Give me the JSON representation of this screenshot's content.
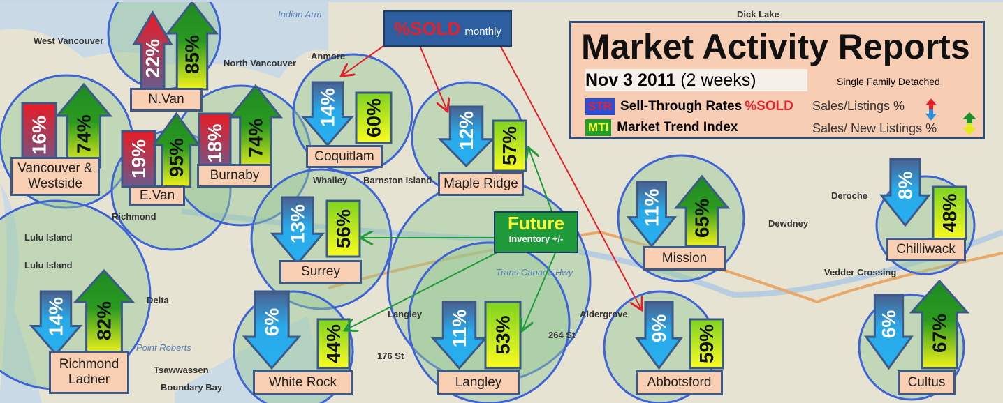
{
  "legend": {
    "title": "Market  Activity Reports",
    "date": "Nov 3 2011",
    "period": "(2 weeks)",
    "property_type": "Single Family Detached",
    "str_tag": "STR",
    "str_label": "Sell-Through Rates",
    "str_sold": "%SOLD",
    "str_ratio": "Sales/Listings %",
    "mti_tag": "MTI",
    "mti_label": "Market Trend Index",
    "mti_ratio": "Sales/ New Listings %"
  },
  "callouts": {
    "sold_main": "%SOLD",
    "sold_sub": "monthly",
    "future_main": "Future",
    "future_sub": "Inventory +/-"
  },
  "colors": {
    "str_up": "#e3212b",
    "str_down": "#29a9e8",
    "mti_up": "#1f8f2a",
    "mti_box": "#e5f21a",
    "circle": "#3d63d6",
    "label_bg": "#f8cfb2"
  },
  "map_labels": [
    "West Vancouver",
    "Indian Arm",
    "North Vancouver",
    "Richmond",
    "Lulu Island",
    "Lulu Island",
    "Delta",
    "Tsawwassen",
    "Boundary Bay",
    "Point Roberts",
    "Whalley",
    "Langley",
    "Aldergrove",
    "Trans Canada Hwy",
    "Deroche",
    "Dewdney",
    "Vedder Crossing",
    "Dick Lake",
    "Anmore",
    "Barnston Island",
    "176 St",
    "264 St"
  ],
  "regions": [
    {
      "name": "N.Van",
      "str": "22%",
      "str_dir": "up",
      "mti": "85%",
      "mti_dir": "up"
    },
    {
      "name": "Vancouver & Westside",
      "str": "16%",
      "str_dir": "up",
      "mti": "74%",
      "mti_dir": "up"
    },
    {
      "name": "E.Van",
      "str": "19%",
      "str_dir": "up",
      "mti": "95%",
      "mti_dir": "up"
    },
    {
      "name": "Burnaby",
      "str": "18%",
      "str_dir": "up",
      "mti": "74%",
      "mti_dir": "up"
    },
    {
      "name": "Coquitlam",
      "str": "14%",
      "str_dir": "down",
      "mti": "60%",
      "mti_dir": "flat"
    },
    {
      "name": "Maple Ridge",
      "str": "12%",
      "str_dir": "down",
      "mti": "57%",
      "mti_dir": "flat"
    },
    {
      "name": "Surrey",
      "str": "13%",
      "str_dir": "down",
      "mti": "56%",
      "mti_dir": "flat"
    },
    {
      "name": "Mission",
      "str": "11%",
      "str_dir": "down",
      "mti": "65%",
      "mti_dir": "up"
    },
    {
      "name": "Chilliwack",
      "str": "8%",
      "str_dir": "down",
      "mti": "48%",
      "mti_dir": "flat"
    },
    {
      "name": "Richmond Ladner",
      "str": "14%",
      "str_dir": "down",
      "mti": "82%",
      "mti_dir": "up"
    },
    {
      "name": "White Rock",
      "str": "6%",
      "str_dir": "down",
      "mti": "44%",
      "mti_dir": "flat"
    },
    {
      "name": "Langley",
      "str": "11%",
      "str_dir": "down",
      "mti": "53%",
      "mti_dir": "flat"
    },
    {
      "name": "Abbotsford",
      "str": "9%",
      "str_dir": "down",
      "mti": "59%",
      "mti_dir": "flat"
    },
    {
      "name": "Cultus",
      "str": "6%",
      "str_dir": "down",
      "mti": "67%",
      "mti_dir": "up"
    }
  ]
}
